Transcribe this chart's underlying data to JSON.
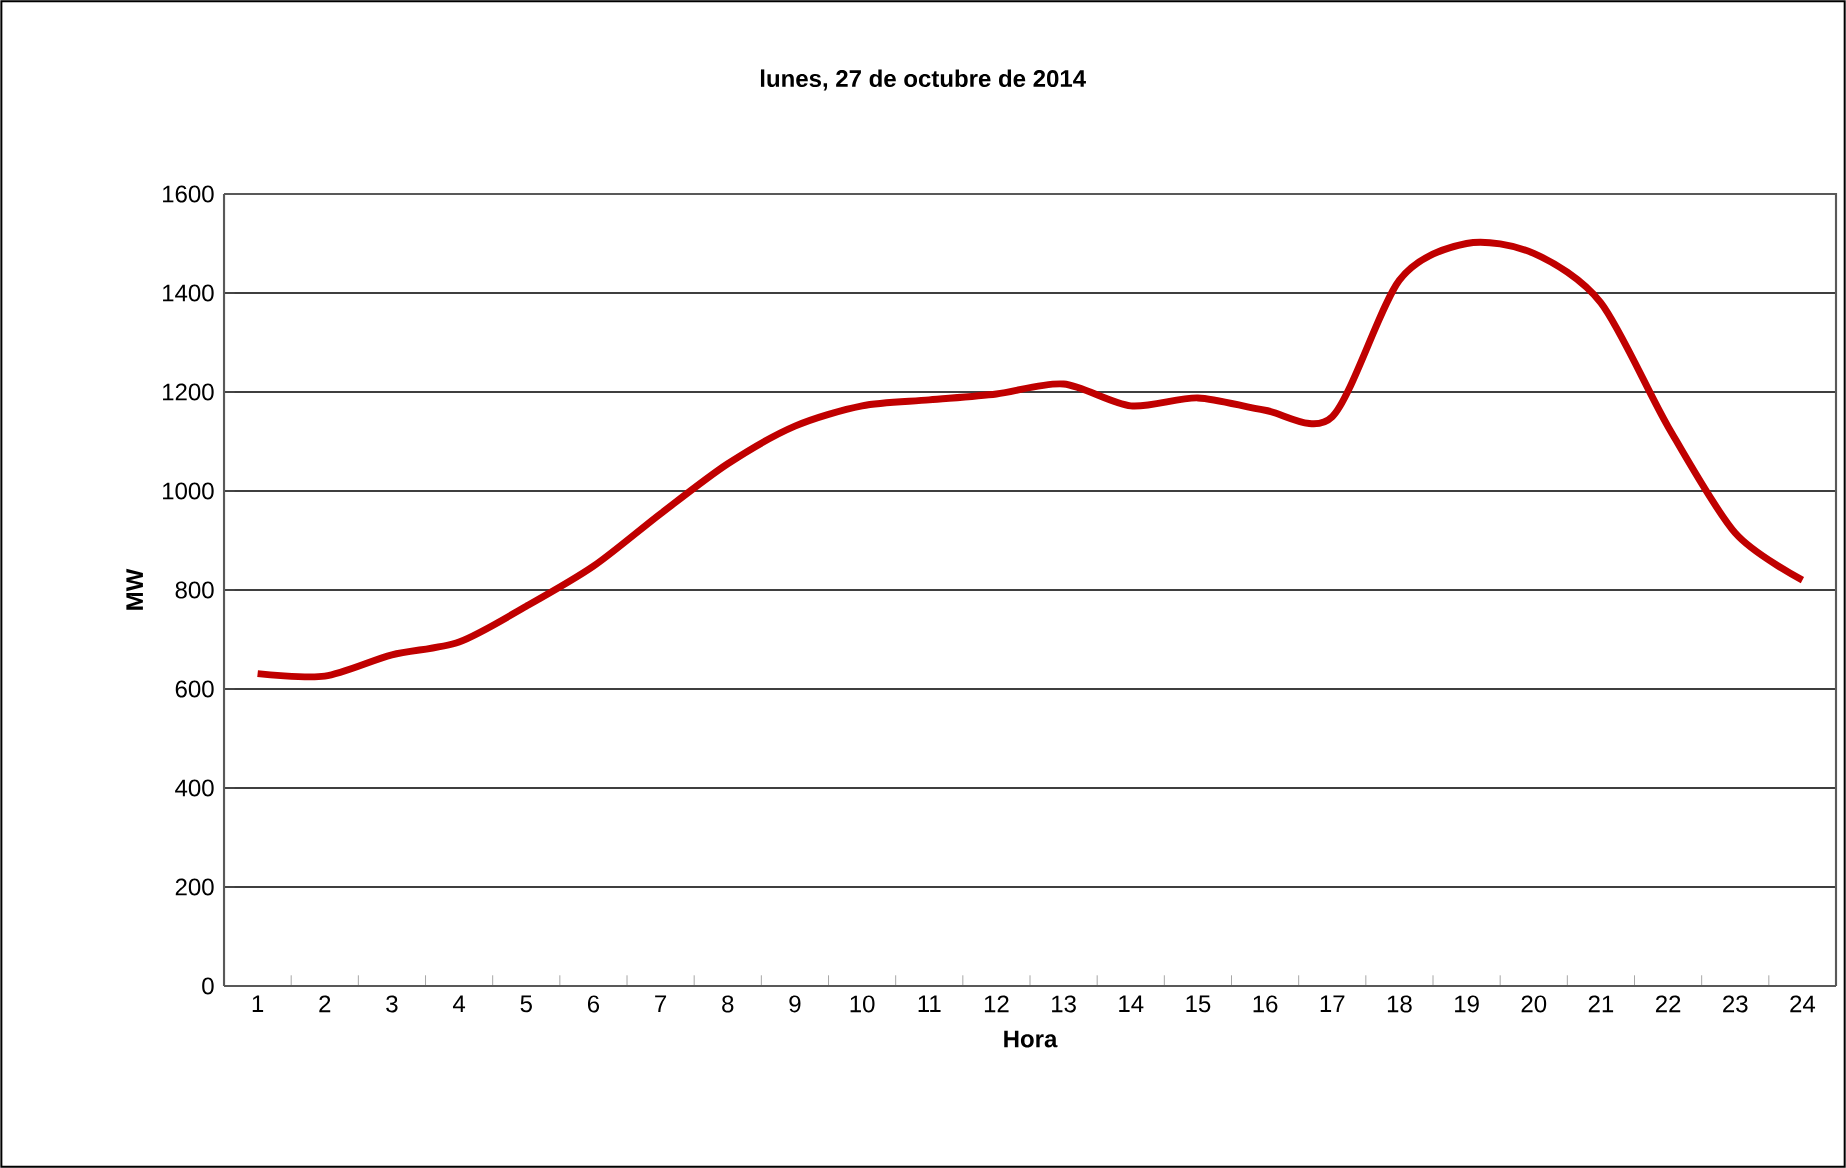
{
  "chart_data": {
    "type": "line",
    "title": "lunes, 27 de octubre de 2014",
    "xlabel": "Hora",
    "ylabel": "MW",
    "categories": [
      "1",
      "2",
      "3",
      "4",
      "5",
      "6",
      "7",
      "8",
      "9",
      "10",
      "11",
      "12",
      "13",
      "14",
      "15",
      "16",
      "17",
      "18",
      "19",
      "20",
      "21",
      "22",
      "23",
      "24"
    ],
    "series": [
      {
        "color": "#c00000",
        "values": [
          631,
          626,
          669,
          695,
          767,
          848,
          954,
          1055,
          1131,
          1172,
          1184,
          1196,
          1216,
          1172,
          1188,
          1163,
          1150,
          1426,
          1500,
          1480,
          1380,
          1130,
          915,
          820
        ]
      }
    ],
    "ylim": [
      0,
      1600
    ],
    "yticks": [
      0,
      200,
      400,
      600,
      800,
      1000,
      1200,
      1400,
      1600
    ],
    "grid": "y",
    "marker": "none",
    "line_style": "solid"
  }
}
